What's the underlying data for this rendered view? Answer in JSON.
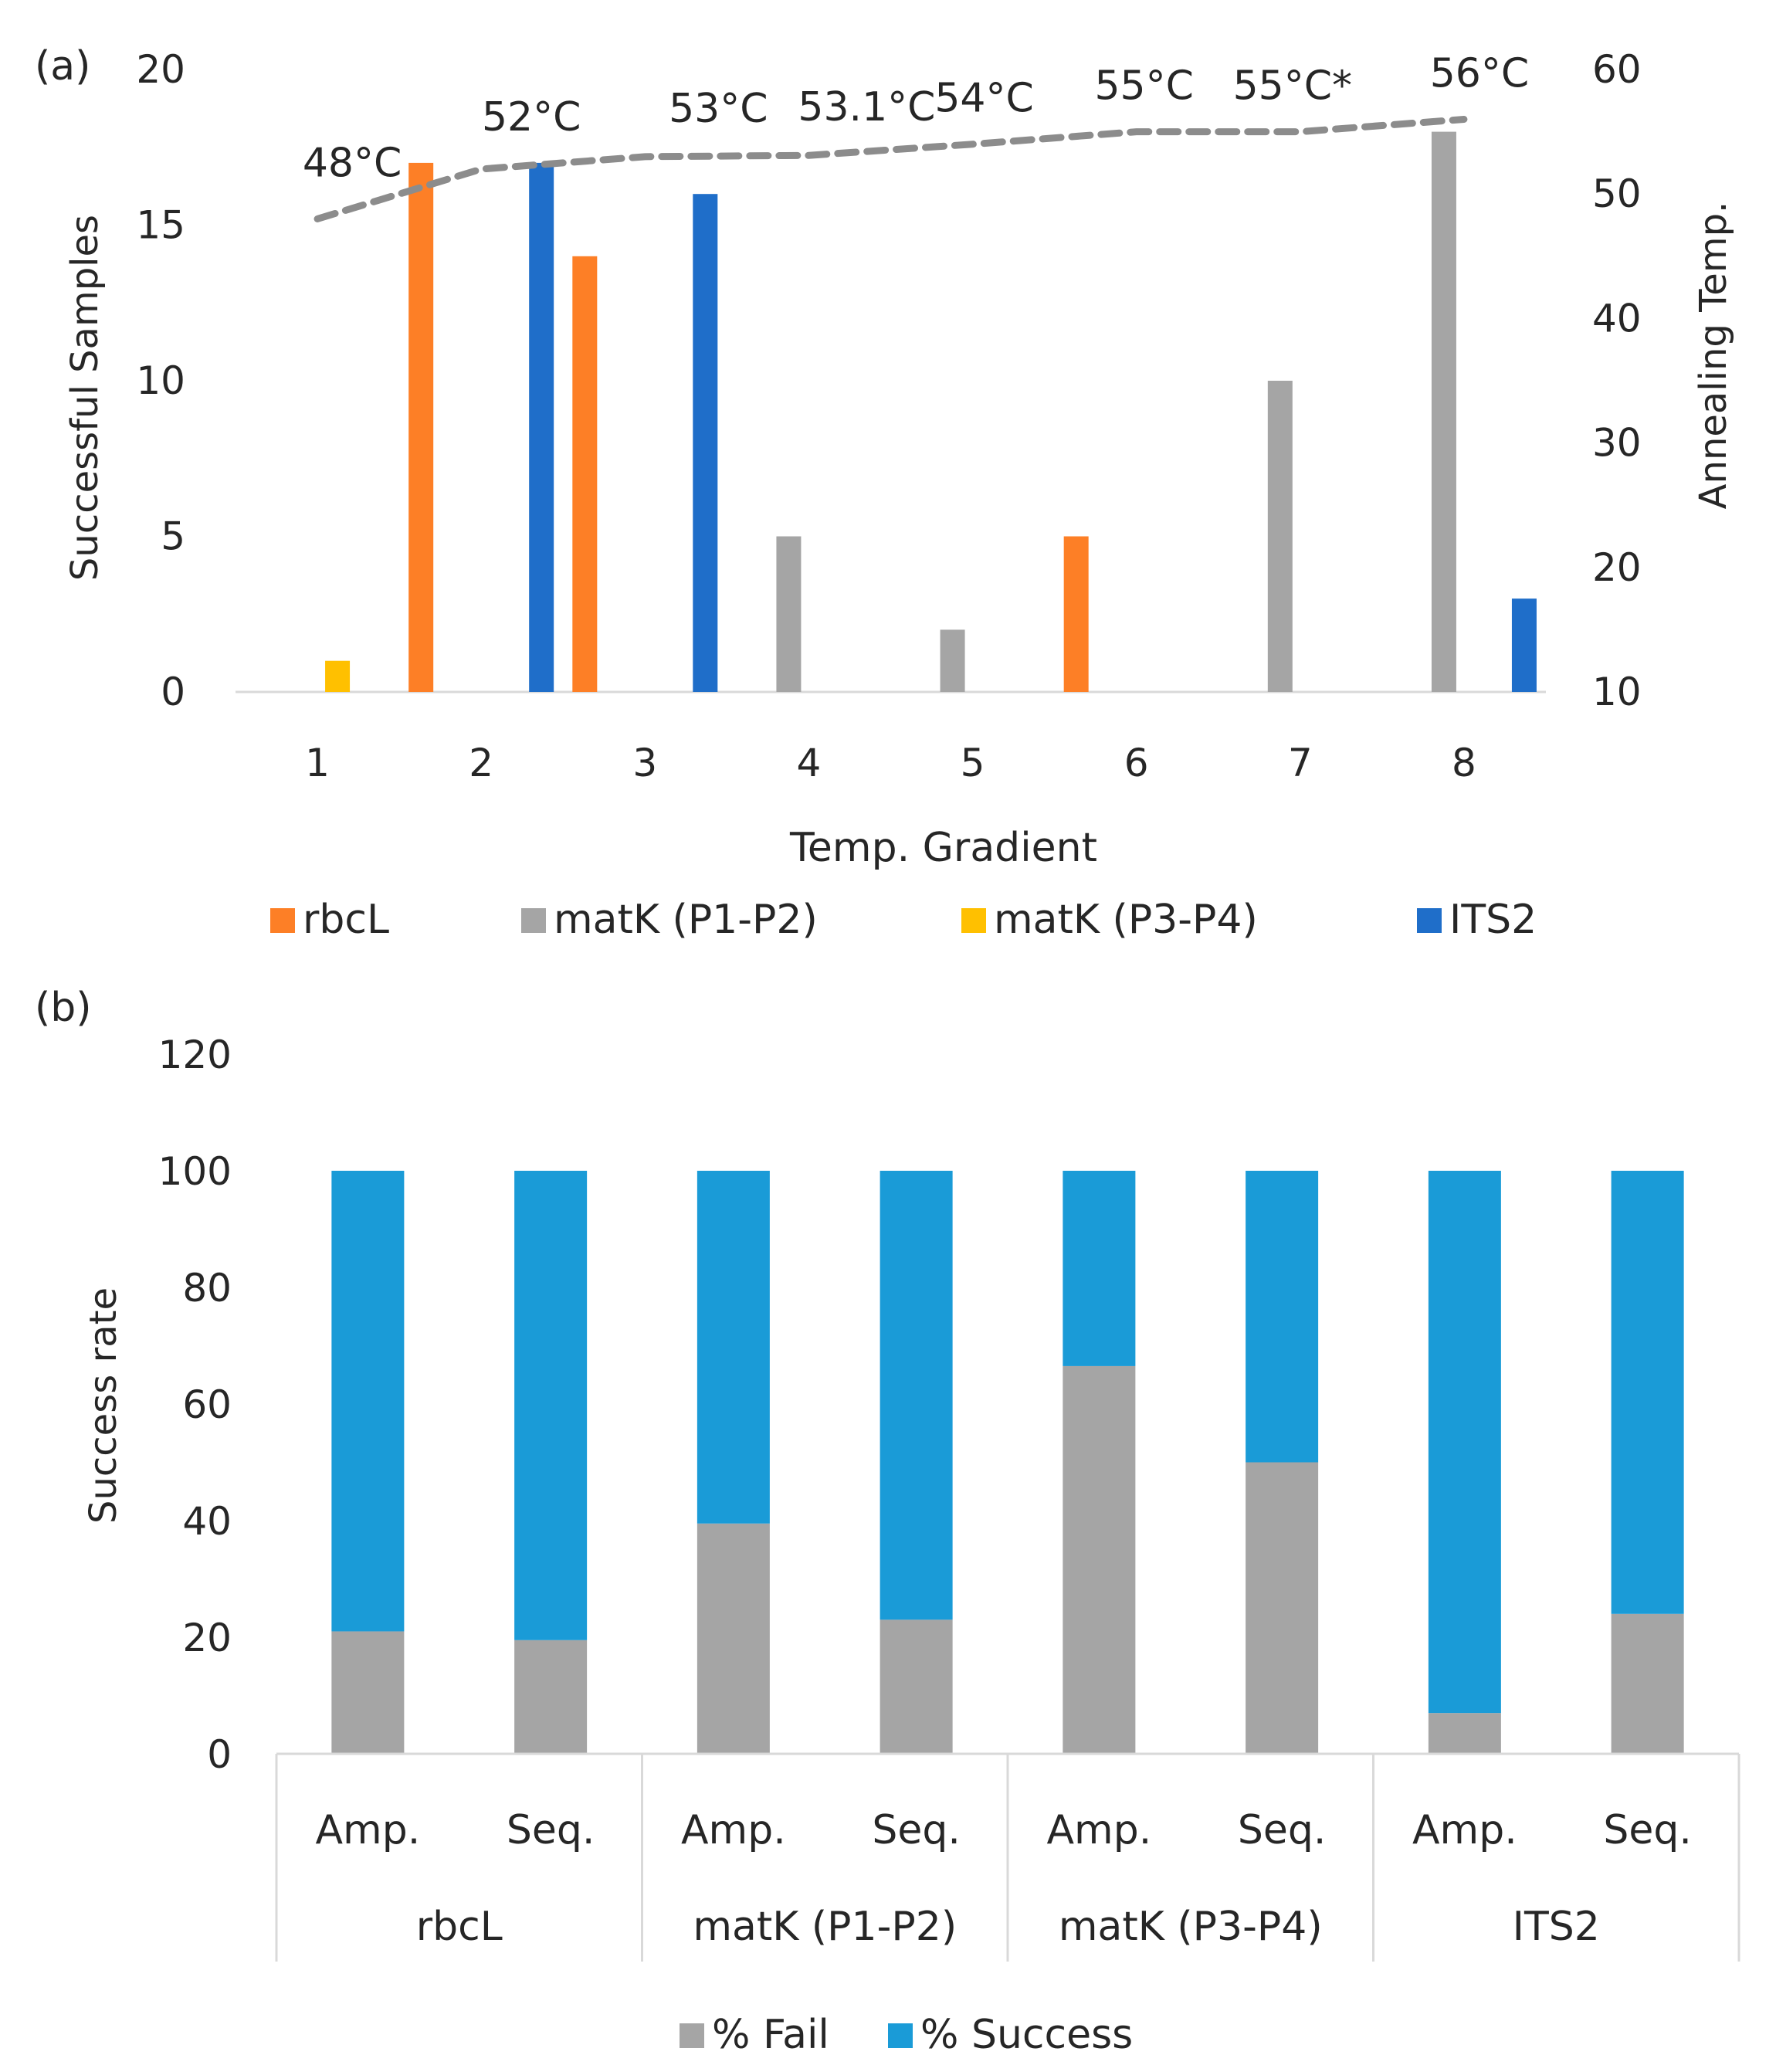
{
  "chart_data": [
    {
      "panel_label": "(a)",
      "type": "bar",
      "categories": [
        "1",
        "2",
        "3",
        "4",
        "5",
        "6",
        "7",
        "8"
      ],
      "series": [
        {
          "name": "rbcL",
          "color": "#fd7f26",
          "values": [
            0,
            17,
            14,
            0,
            0,
            5,
            0,
            0
          ]
        },
        {
          "name": "matK (P1-P2)",
          "color": "#a5a5a5",
          "values": [
            0,
            0,
            0,
            5,
            2,
            0,
            10,
            18
          ]
        },
        {
          "name": "matK (P3-P4)",
          "color": "#ffc000",
          "values": [
            1,
            0,
            0,
            0,
            0,
            0,
            0,
            0
          ]
        },
        {
          "name": "ITS2",
          "color": "#1f6ec9",
          "values": [
            0,
            17,
            16,
            0,
            0,
            0,
            0,
            3
          ]
        }
      ],
      "line_series": {
        "name": "Annealing Temp.",
        "color": "#8c8c8c",
        "axis": "secondary",
        "values": [
          48,
          52,
          53,
          53.1,
          54,
          55,
          55,
          56
        ],
        "labels": [
          "48°C",
          "52°C",
          "53°C",
          "53.1°C",
          "54°C",
          "55°C",
          "55°C*",
          "56°C"
        ]
      },
      "xlabel": "Temp. Gradient",
      "ylabel": "Successful Samples",
      "y2label": "Annealing Temp.",
      "ylim": [
        0,
        20
      ],
      "yticks": [
        0,
        5,
        10,
        15,
        20
      ],
      "y2lim": [
        10,
        60
      ],
      "y2ticks": [
        10,
        20,
        30,
        40,
        50,
        60
      ],
      "legend": [
        "rbcL",
        "matK (P1-P2)",
        "matK (P3-P4)",
        "ITS2"
      ]
    },
    {
      "panel_label": "(b)",
      "type": "bar",
      "stacked": true,
      "groups": [
        "rbcL",
        "matK (P1-P2)",
        "matK (P3-P4)",
        "ITS2"
      ],
      "subcategories": [
        "Amp.",
        "Seq."
      ],
      "series": [
        {
          "name": "% Fail",
          "color": "#a5a5a5",
          "values": [
            21,
            19.5,
            39.5,
            23,
            66.5,
            50,
            7,
            24
          ]
        },
        {
          "name": "% Success",
          "color": "#1a9bd7",
          "values": [
            79,
            80.5,
            60.5,
            77,
            33.5,
            50,
            93,
            76
          ]
        }
      ],
      "ylabel": "Success rate",
      "ylim": [
        0,
        120
      ],
      "yticks": [
        0,
        20,
        40,
        60,
        80,
        100,
        120
      ],
      "legend": [
        "% Fail",
        "% Success"
      ]
    }
  ]
}
